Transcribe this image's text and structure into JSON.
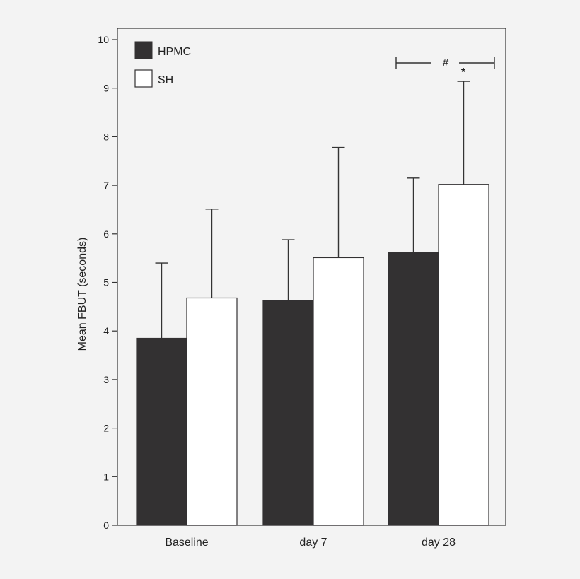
{
  "chart_data": {
    "type": "bar",
    "title": "",
    "xlabel": "",
    "ylabel": "Mean FBUT (seconds)",
    "ylim": [
      0,
      10
    ],
    "yticks": [
      "0",
      "1",
      "2",
      "3",
      "4",
      "5",
      "6",
      "7",
      "8",
      "9",
      "10"
    ],
    "grid": false,
    "legend_position": "top-left",
    "categories": [
      "Baseline",
      "day 7",
      "day 28"
    ],
    "series": [
      {
        "name": "HPMC",
        "color": "#333132",
        "values": [
          3.85,
          4.63,
          5.61
        ],
        "error_upper": [
          5.4,
          5.88,
          7.15
        ]
      },
      {
        "name": "SH",
        "color": "#ffffff",
        "values": [
          4.68,
          5.51,
          7.02
        ],
        "error_upper": [
          6.51,
          7.78,
          9.14
        ]
      }
    ],
    "annotations": {
      "hash": "#",
      "star": "*"
    }
  },
  "colors": {
    "axis": "#333333",
    "background": "#f3f3f3"
  }
}
